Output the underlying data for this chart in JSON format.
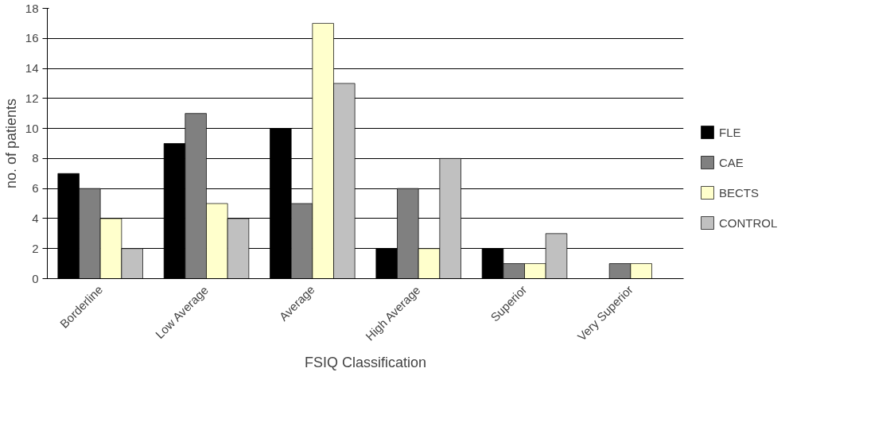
{
  "chart_data": {
    "type": "bar",
    "xlabel": "FSIQ Classification",
    "ylabel": "no. of patients",
    "categories": [
      "Borderline",
      "Low Average",
      "Average",
      "High Average",
      "Superior",
      "Very Superior"
    ],
    "series": [
      {
        "name": "FLE",
        "color": "#000000",
        "values": [
          7,
          9,
          10,
          2,
          2,
          0
        ]
      },
      {
        "name": "CAE",
        "color": "#808080",
        "values": [
          6,
          11,
          5,
          6,
          1,
          1
        ]
      },
      {
        "name": "BECTS",
        "color": "#ffffcc",
        "values": [
          4,
          5,
          17,
          2,
          1,
          1
        ]
      },
      {
        "name": "CONTROL",
        "color": "#c0c0c0",
        "values": [
          2,
          4,
          13,
          8,
          3,
          0
        ]
      }
    ],
    "ylim": [
      0,
      18
    ],
    "yticks": [
      0,
      2,
      4,
      6,
      8,
      10,
      12,
      14,
      16,
      18
    ],
    "grid": "y",
    "legend": "right"
  }
}
